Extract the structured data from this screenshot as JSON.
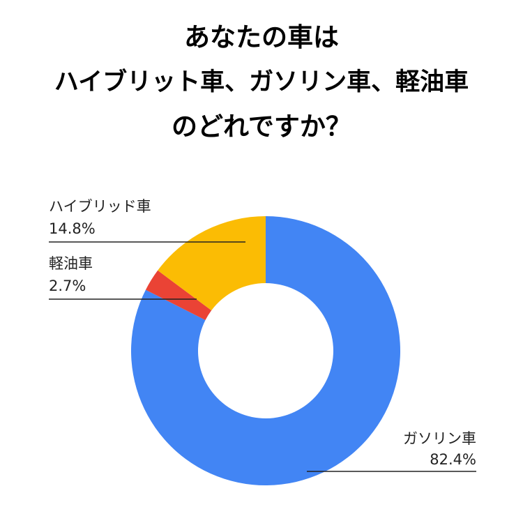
{
  "title_lines": [
    "あなたの車は",
    "ハイブリット車、ガソリン車、軽油車",
    "のどれですか？"
  ],
  "chart_data": {
    "type": "pie",
    "donut": true,
    "title": "あなたの車は ハイブリット車、ガソリン車、軽油車 のどれですか？",
    "slices": [
      {
        "label": "ガソリン車",
        "value": 82.4,
        "value_label": "82.4%",
        "color": "#4285f4"
      },
      {
        "label": "軽油車",
        "value": 2.7,
        "value_label": "2.7%",
        "color": "#ea4335"
      },
      {
        "label": "ハイブリッド車",
        "value": 14.8,
        "value_label": "14.8%",
        "color": "#fbbc04"
      }
    ],
    "start": "12 o'clock",
    "direction": "clockwise",
    "legend": "none"
  }
}
